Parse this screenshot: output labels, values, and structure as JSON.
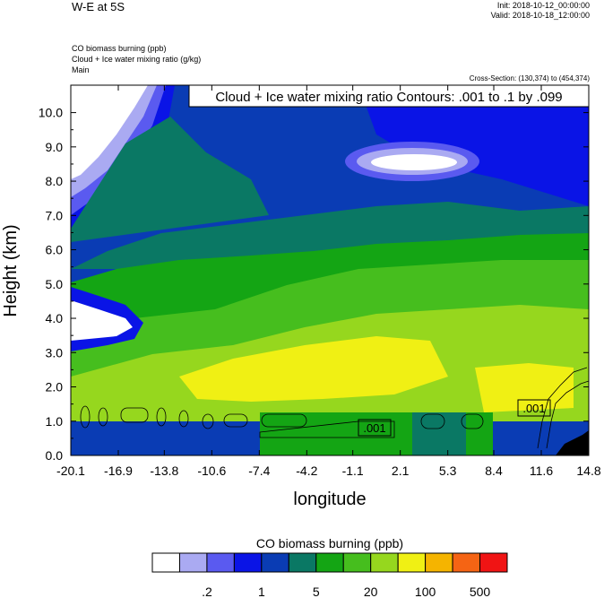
{
  "header": {
    "title": "W-E at 5S",
    "init": "Init: 2018-10-12_00:00:00",
    "valid": "Valid: 2018-10-18_12:00:00",
    "fields": [
      "CO biomass burning   (ppb)",
      "Cloud + Ice water mixing ratio   (g/kg)",
      "Main"
    ],
    "cross_section": "Cross-Section: (130,374) to (454,374)"
  },
  "colors": {
    "levels": [
      "#ffffff",
      "#aaaaf2",
      "#5a5af0",
      "#0a14e6",
      "#0a3cb4",
      "#0a7864",
      "#14a514",
      "#46be1e",
      "#96d71e",
      "#f0f014",
      "#f5b400",
      "#f56414",
      "#f01414"
    ]
  },
  "chart_data": {
    "type": "heatmap",
    "title": "",
    "xlabel": "longitude",
    "ylabel": "Height (km)",
    "x_ticks": [
      "-20.1",
      "-16.9",
      "-13.8",
      "-10.6",
      "-7.4",
      "-4.2",
      "-1.1",
      "2.1",
      "5.3",
      "8.4",
      "11.6",
      "14.8"
    ],
    "y_ticks": [
      "0.0",
      "1.0",
      "2.0",
      "3.0",
      "4.0",
      "5.0",
      "6.0",
      "7.0",
      "8.0",
      "9.0",
      "10.0"
    ],
    "ylim": [
      0,
      10.8
    ],
    "xlim": [
      -20.1,
      14.8
    ],
    "contour_info": "Cloud + Ice water mixing ratio Contours: .001 to .1 by .099",
    "contour_labels": [
      ".001",
      ".001"
    ],
    "colorbar": {
      "title": "CO biomass burning  (ppb)",
      "labels": [
        ".2",
        "1",
        "5",
        "20",
        "100",
        "500"
      ]
    }
  }
}
